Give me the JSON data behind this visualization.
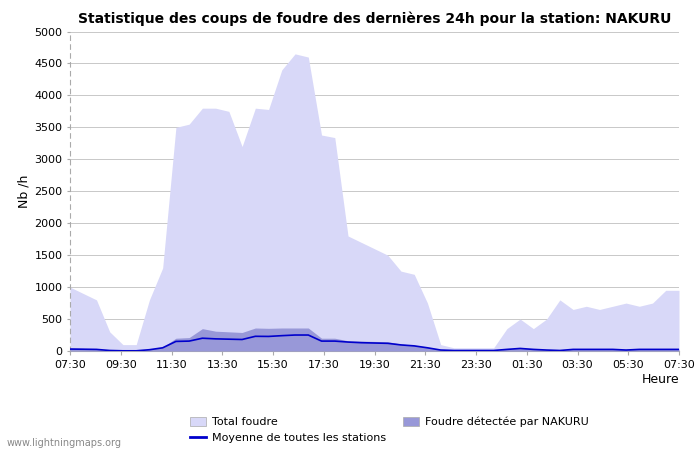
{
  "title": "Statistique des coups de foudre des dernières 24h pour la station: NAKURU",
  "xlabel": "Heure",
  "ylabel": "Nb /h",
  "ylim": [
    0,
    5000
  ],
  "yticks": [
    0,
    500,
    1000,
    1500,
    2000,
    2500,
    3000,
    3500,
    4000,
    4500,
    5000
  ],
  "xtick_labels": [
    "07:30",
    "09:30",
    "11:30",
    "13:30",
    "15:30",
    "17:30",
    "19:30",
    "21:30",
    "23:30",
    "01:30",
    "03:30",
    "05:30",
    "07:30"
  ],
  "bg_color": "#ffffff",
  "plot_bg_color": "#ffffff",
  "grid_color": "#c8c8c8",
  "fill_total_color": "#d8d8f8",
  "fill_nakuru_color": "#9898d8",
  "line_color": "#0000cc",
  "watermark": "www.lightningmaps.org",
  "total_foudre": [
    1000,
    900,
    800,
    300,
    100,
    100,
    800,
    1300,
    3500,
    3550,
    3800,
    3800,
    3750,
    3200,
    3800,
    3780,
    4400,
    4650,
    4600,
    3380,
    3340,
    1800,
    1700,
    1600,
    1500,
    1250,
    1200,
    750,
    100,
    50,
    50,
    50,
    50,
    350,
    500,
    350,
    500,
    800,
    650,
    700,
    650,
    700,
    750,
    700,
    750,
    950,
    950
  ],
  "nakuru_foudre": [
    50,
    40,
    30,
    10,
    5,
    5,
    30,
    60,
    200,
    210,
    350,
    310,
    300,
    290,
    360,
    355,
    360,
    360,
    360,
    200,
    200,
    160,
    155,
    150,
    145,
    110,
    90,
    60,
    20,
    10,
    10,
    10,
    10,
    30,
    50,
    30,
    20,
    10,
    30,
    30,
    30,
    30,
    20,
    30,
    30,
    30,
    30
  ],
  "moyenne_stations": [
    30,
    28,
    25,
    8,
    3,
    3,
    20,
    50,
    150,
    155,
    200,
    190,
    185,
    180,
    230,
    228,
    240,
    250,
    250,
    155,
    155,
    140,
    130,
    125,
    120,
    95,
    80,
    50,
    15,
    8,
    8,
    8,
    8,
    25,
    40,
    25,
    15,
    8,
    25,
    25,
    25,
    25,
    15,
    25,
    25,
    25,
    25
  ]
}
